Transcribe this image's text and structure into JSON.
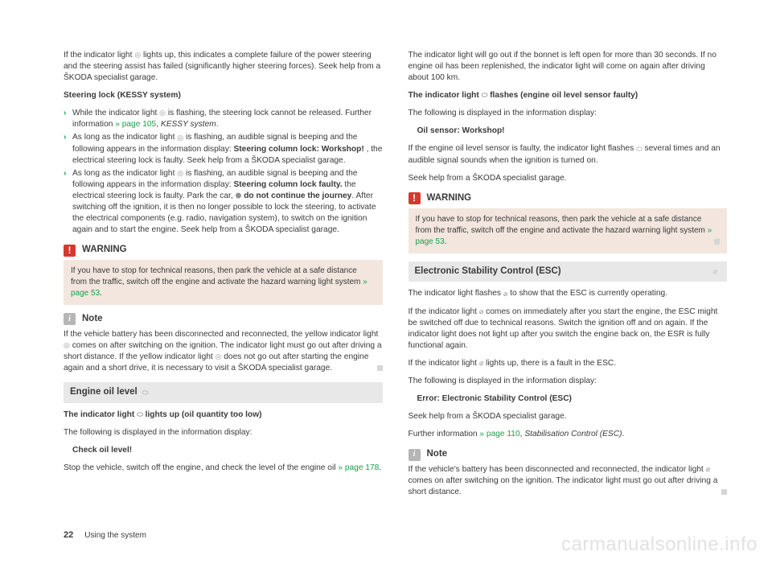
{
  "left": {
    "p1_a": "If the indicator light ",
    "p1_b": " lights up, this indicates a complete failure of the power steering and the steering assist has failed (significantly higher steering forces). Seek help from a ŠKODA specialist garage.",
    "steering_heading": "Steering lock (KESSY system)",
    "b1_a": "While the indicator light ",
    "b1_b": " is flashing, the steering lock cannot be released. Further information ",
    "b1_link": "» page 105",
    "b1_c": ", ",
    "b1_italic": "KESSY system",
    "b1_d": ".",
    "b2_a": "As long as the indicator light ",
    "b2_b": " is flashing, an audible signal is beeping and the following appears in the information display: ",
    "b2_bold": "Steering column lock: Workshop!",
    "b2_c": " , the electrical steering lock is faulty. Seek help from a ŠKODA specialist garage.",
    "b3_a": "As long as the indicator light ",
    "b3_b": " is flashing, an audible signal is beeping and the following appears in the information display: ",
    "b3_bold1": "Steering column lock faulty.",
    "b3_c": " the electrical steering lock is faulty. Park the car, ",
    "b3_bold2": " do not continue the journey",
    "b3_d": ". After switching off the ignition, it is then no longer possible to lock the steering, to activate the electrical components (e.g. radio, navigation system), to switch on the ignition again and to start the engine. Seek help from a ŠKODA specialist garage.",
    "warn_title": "WARNING",
    "warn_body_a": "If you have to stop for technical reasons, then park the vehicle at a safe distance from the traffic, switch off the engine and activate the hazard warning light system ",
    "warn_link": "» page 53",
    "warn_body_b": ".",
    "note_title": "Note",
    "note_body_a": "If the vehicle battery has been disconnected and reconnected, the yellow indicator light ",
    "note_body_b": " comes on after switching on the ignition. The indicator light must go out after driving a short distance. If the yellow indicator light ",
    "note_body_c": " does not go out after starting the engine again and a short drive, it is necessary to visit a ŠKODA specialist garage.",
    "section_oil": "Engine oil level ",
    "oil_icon": "⛽",
    "oil_h_a": "The indicator light ",
    "oil_h_b": " lights up (oil quantity too low)",
    "oil_p1": "The following is displayed in the information display:",
    "oil_msg": "Check oil level!",
    "oil_p2_a": "Stop the vehicle, switch off the engine, and check the level of the engine oil ",
    "oil_link": "» page 178",
    "oil_p2_b": "."
  },
  "right": {
    "p1": "The indicator light will go out if the bonnet is left open for more than 30 seconds. If no engine oil has been replenished, the indicator light will come on again after driving about 100 km.",
    "h1_a": "The indicator light ",
    "h1_b": " flashes (engine oil level sensor faulty)",
    "p2": "The following is displayed in the information display:",
    "msg1": "Oil sensor: Workshop!",
    "p3_a": "If the engine oil level sensor is faulty, the indicator light flashes ",
    "p3_b": " several times and an audible signal sounds when the ignition is turned on.",
    "p4": "Seek help from a ŠKODA specialist garage.",
    "warn_title": "WARNING",
    "warn_body_a": "If you have to stop for technical reasons, then park the vehicle at a safe distance from the traffic, switch off the engine and activate the hazard warning light system ",
    "warn_link": "» page 53",
    "warn_body_b": ".",
    "section_esc": "Electronic Stability Control (ESC) ",
    "esc_p1_a": "The indicator light flashes ",
    "esc_p1_b": " to show that the ESC is currently operating.",
    "esc_p2_a": "If the indicator light ",
    "esc_p2_b": " comes on immediately after you start the engine, the ESC might be switched off due to technical reasons. Switch the ignition off and on again. If the indicator light does not light up after you switch the engine back on, the ESR is fully functional again.",
    "esc_p3_a": "If the indicator light ",
    "esc_p3_b": " lights up, there is a fault in the ESC.",
    "esc_p4": "The following is displayed in the information display:",
    "esc_msg": "Error: Electronic Stability Control (ESC)",
    "esc_p5": "Seek help from a ŠKODA specialist garage.",
    "esc_p6_a": "Further information ",
    "esc_link": "» page 110",
    "esc_p6_b": ", ",
    "esc_italic": "Stabilisation Control (ESC)",
    "esc_p6_c": ".",
    "note_title": "Note",
    "note_body_a": "If the vehicle's battery has been disconnected and reconnected, the indicator light ",
    "note_body_b": " comes on after switching on the ignition. The indicator light must go out after driving a short distance."
  },
  "footer": {
    "page": "22",
    "chapter": "Using the system"
  },
  "watermark": "carmanualsonline.info",
  "icons": {
    "steering": "◎",
    "oil": "⬭",
    "stop": "⬣",
    "esc": "⌀"
  }
}
